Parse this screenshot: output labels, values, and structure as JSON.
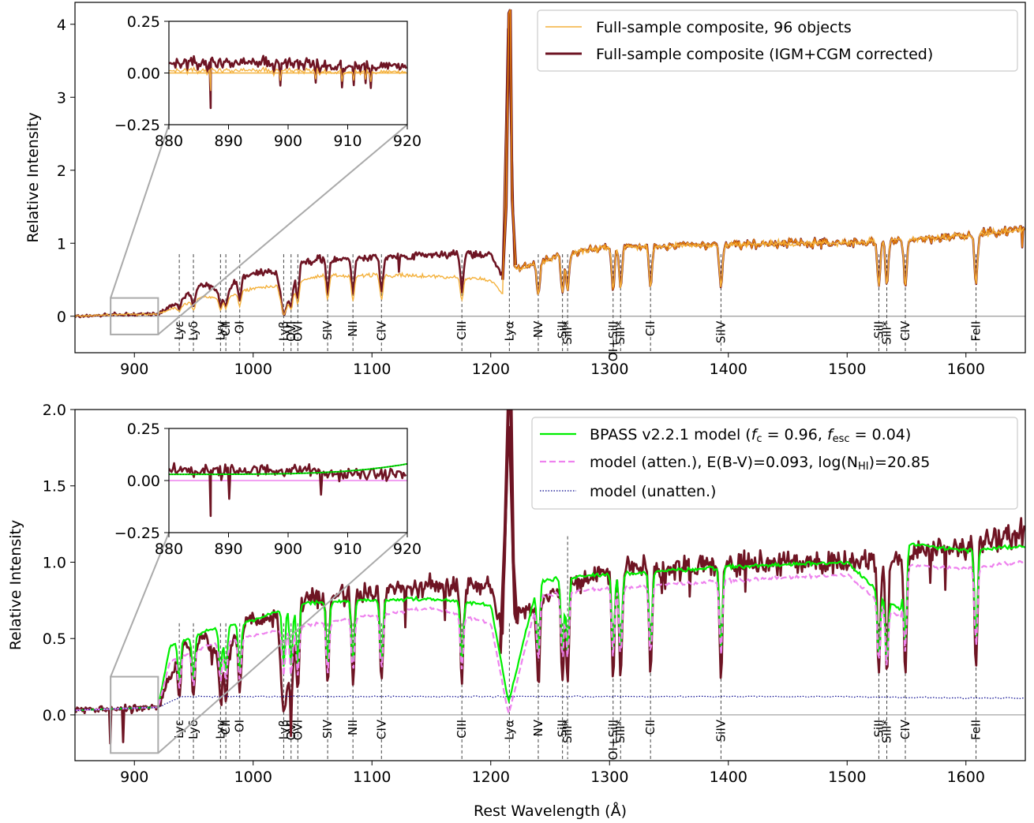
{
  "colors": {
    "composite": "#f4b13c",
    "corrected": "#6e1423",
    "corrected_top_fill": "#e8820c",
    "bpass": "#00ee00",
    "atten": "#ee82ee",
    "unatten": "#00008b",
    "zero_line": "#999999",
    "marker_line": "#444444",
    "inset_box": "#aaaaaa"
  },
  "xlabel": "Rest Wavelength (Å)",
  "ylabel": "Relative Intensity",
  "line_markers": [
    {
      "label": "Lyε",
      "wl": 937.8
    },
    {
      "label": "Lyδ",
      "wl": 949.7
    },
    {
      "label": "Lyγ",
      "wl": 972.5
    },
    {
      "label": "CII",
      "wl": 977.0
    },
    {
      "label": "OI",
      "wl": 988.7
    },
    {
      "label": "Lyβ",
      "wl": 1025.7
    },
    {
      "label": "OVI",
      "wl": 1031.9
    },
    {
      "label": "OVI",
      "wl": 1037.6
    },
    {
      "label": "SIV",
      "wl": 1062.7
    },
    {
      "label": "NII",
      "wl": 1083.99
    },
    {
      "label": "CIV",
      "wl": 1108.0
    },
    {
      "label": "CIII",
      "wl": 1175.7
    },
    {
      "label": "Lyα",
      "wl": 1215.67
    },
    {
      "label": "NV",
      "wl": 1240.0
    },
    {
      "label": "SiII",
      "wl": 1260.4
    },
    {
      "label": "SiII*",
      "wl": 1264.7
    },
    {
      "label": "OI+SiII",
      "wl": 1303.0
    },
    {
      "label": "SiII*",
      "wl": 1309.3
    },
    {
      "label": "CII",
      "wl": 1334.5
    },
    {
      "label": "SiIV",
      "wl": 1393.8
    },
    {
      "label": "SiII",
      "wl": 1526.7
    },
    {
      "label": "SiII*",
      "wl": 1533.4
    },
    {
      "label": "CIV",
      "wl": 1549.0
    },
    {
      "label": "FeII",
      "wl": 1608.5
    }
  ],
  "chart_data": [
    {
      "type": "line",
      "panel": "top",
      "xlim": [
        850,
        1650
      ],
      "ylim": [
        -0.5,
        4.3
      ],
      "xticks": [
        900,
        1000,
        1100,
        1200,
        1300,
        1400,
        1500,
        1600
      ],
      "yticks": [
        0,
        1,
        2,
        3,
        4
      ],
      "legend_position": "top-right",
      "series": [
        {
          "name": "Full-sample composite, 96 objects",
          "x": [
            850,
            880,
            920,
            940,
            960,
            975,
            990,
            1000,
            1020,
            1026,
            1040,
            1060,
            1100,
            1150,
            1200,
            1210,
            1215,
            1220,
            1240,
            1260,
            1300,
            1350,
            1400,
            1450,
            1500,
            1550,
            1600,
            1650
          ],
          "y": [
            0.0,
            0.02,
            0.03,
            0.15,
            0.28,
            0.22,
            0.35,
            0.38,
            0.42,
            0.05,
            0.5,
            0.55,
            0.56,
            0.55,
            0.5,
            0.3,
            4.15,
            0.65,
            0.72,
            0.85,
            0.95,
            0.96,
            0.98,
            1.0,
            1.0,
            1.05,
            1.1,
            1.2
          ]
        },
        {
          "name": "Full-sample composite (IGM+CGM corrected)",
          "x": [
            850,
            880,
            920,
            940,
            960,
            975,
            990,
            1000,
            1020,
            1026,
            1040,
            1060,
            1100,
            1150,
            1200,
            1210,
            1215,
            1220,
            1240,
            1260,
            1300,
            1350,
            1400,
            1450,
            1500,
            1550,
            1600,
            1650
          ],
          "y": [
            0.0,
            0.02,
            0.03,
            0.25,
            0.45,
            0.3,
            0.55,
            0.58,
            0.6,
            0.05,
            0.75,
            0.78,
            0.8,
            0.85,
            0.85,
            0.55,
            4.15,
            0.65,
            0.72,
            0.85,
            0.95,
            0.96,
            0.98,
            1.0,
            1.0,
            1.05,
            1.1,
            1.2
          ]
        }
      ],
      "inset": {
        "xlim": [
          880,
          920
        ],
        "ylim": [
          -0.25,
          0.25
        ],
        "xticks": [
          880,
          890,
          900,
          910,
          920
        ],
        "yticks": [
          -0.25,
          0.0,
          0.25
        ]
      }
    },
    {
      "type": "line",
      "panel": "bottom",
      "xlim": [
        850,
        1650
      ],
      "ylim": [
        -0.3,
        2.0
      ],
      "xticks": [
        900,
        1000,
        1100,
        1200,
        1300,
        1400,
        1500,
        1600
      ],
      "yticks": [
        0.0,
        0.5,
        1.0,
        1.5,
        2.0
      ],
      "legend_position": "top-right",
      "series": [
        {
          "name": "",
          "x": [
            850,
            880,
            920,
            940,
            960,
            975,
            990,
            1000,
            1020,
            1026,
            1040,
            1060,
            1100,
            1150,
            1200,
            1210,
            1215,
            1220,
            1240,
            1260,
            1300,
            1350,
            1400,
            1450,
            1500,
            1550,
            1600,
            1650
          ],
          "y": [
            0.03,
            0.04,
            0.05,
            0.45,
            0.5,
            0.35,
            0.6,
            0.62,
            0.65,
            0.05,
            0.75,
            0.78,
            0.8,
            0.85,
            0.85,
            0.55,
            2.0,
            0.65,
            0.72,
            0.85,
            0.95,
            0.96,
            0.98,
            1.0,
            1.0,
            1.05,
            1.1,
            1.2
          ]
        },
        {
          "name": "BPASS v2.2.1 model",
          "x": [
            850,
            920,
            930,
            960,
            1000,
            1040,
            1100,
            1150,
            1200,
            1215,
            1240,
            1300,
            1400,
            1500,
            1545,
            1550,
            1600,
            1650
          ],
          "y": [
            0.03,
            0.05,
            0.45,
            0.55,
            0.62,
            0.73,
            0.75,
            0.76,
            0.72,
            0.08,
            0.88,
            0.92,
            0.97,
            1.0,
            0.68,
            1.12,
            1.08,
            1.1
          ]
        },
        {
          "name": "model (atten.), E(B-V)=0.093, log(NHI)=20.85",
          "x": [
            850,
            920,
            930,
            960,
            1000,
            1040,
            1100,
            1150,
            1200,
            1215,
            1240,
            1300,
            1400,
            1500,
            1545,
            1550,
            1600,
            1650
          ],
          "y": [
            0.03,
            0.05,
            0.35,
            0.45,
            0.52,
            0.58,
            0.65,
            0.7,
            0.6,
            0.0,
            0.78,
            0.83,
            0.88,
            0.92,
            0.63,
            0.98,
            0.96,
            1.0
          ]
        },
        {
          "name": "model (unatten.)",
          "x": [
            850,
            920,
            940,
            1000,
            1100,
            1200,
            1300,
            1400,
            1500,
            1600,
            1650
          ],
          "y": [
            0.03,
            0.05,
            0.12,
            0.12,
            0.12,
            0.12,
            0.12,
            0.12,
            0.12,
            0.11,
            0.11
          ]
        }
      ],
      "inset": {
        "xlim": [
          880,
          920
        ],
        "ylim": [
          -0.25,
          0.25
        ],
        "xticks": [
          880,
          890,
          900,
          910,
          920
        ],
        "yticks": [
          -0.25,
          0.0,
          0.25
        ]
      }
    }
  ],
  "legends": {
    "top": [
      {
        "label": "Full-sample composite, 96 objects"
      },
      {
        "label": "Full-sample composite (IGM+CGM corrected)"
      }
    ],
    "bottom": [
      {
        "label_pre": "BPASS v2.2.1 model (",
        "label_math": "f",
        "label_sub1": "c",
        "label_mid": " = 0.96, ",
        "label_math2": "f",
        "label_sub2": "esc",
        "label_post": " = 0.04)"
      },
      {
        "label_pre": "model (atten.), E(B-V)=0.093, log(N",
        "label_sub": "HI",
        "label_post": ")=20.85"
      },
      {
        "label": "model (unatten.)"
      }
    ]
  }
}
